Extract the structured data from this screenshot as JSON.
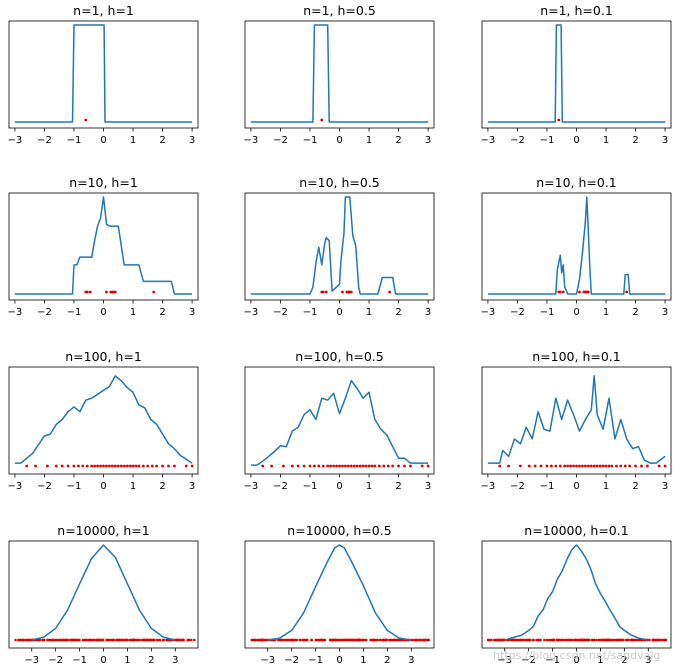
{
  "figure": {
    "watermark": "https://blog.csdn.net/sandvalg"
  },
  "chart_data": [
    {
      "type": "line",
      "title": "n=1, h=1",
      "n": 1,
      "h": 1,
      "xlim": [
        -3.2,
        3.2
      ],
      "xticks": [
        -3,
        -2,
        -1,
        0,
        1,
        2,
        3
      ],
      "yrange": [
        0,
        1
      ],
      "x": [
        -3,
        -1.05,
        -1,
        0,
        0.02,
        0.05,
        3
      ],
      "y": [
        0,
        0,
        1,
        1,
        1,
        0,
        0
      ],
      "samples": [
        -0.6
      ]
    },
    {
      "type": "line",
      "title": "n=1, h=0.5",
      "n": 1,
      "h": 0.5,
      "xlim": [
        -3.2,
        3.2
      ],
      "xticks": [
        -3,
        -2,
        -1,
        0,
        1,
        2,
        3
      ],
      "yrange": [
        0,
        1
      ],
      "x": [
        -3,
        -0.9,
        -0.85,
        -0.4,
        -0.35,
        3
      ],
      "y": [
        0,
        0,
        1,
        1,
        0,
        0
      ],
      "samples": [
        -0.6
      ]
    },
    {
      "type": "line",
      "title": "n=1, h=0.1",
      "n": 1,
      "h": 0.1,
      "xlim": [
        -3.2,
        3.2
      ],
      "xticks": [
        -3,
        -2,
        -1,
        0,
        1,
        2,
        3
      ],
      "yrange": [
        0,
        1
      ],
      "x": [
        -3,
        -0.72,
        -0.68,
        -0.52,
        -0.48,
        3
      ],
      "y": [
        0,
        0,
        1,
        1,
        0,
        0
      ],
      "samples": [
        -0.6
      ]
    },
    {
      "type": "line",
      "title": "n=10, h=1",
      "n": 10,
      "h": 1,
      "xlim": [
        -3.2,
        3.2
      ],
      "xticks": [
        -3,
        -2,
        -1,
        0,
        1,
        2,
        3
      ],
      "yrange": [
        0,
        1
      ],
      "x": [
        -3,
        -1.05,
        -1,
        -0.9,
        -0.8,
        -0.4,
        -0.3,
        -0.2,
        -0.1,
        0,
        0.1,
        0.2,
        0.5,
        0.7,
        1.2,
        1.35,
        2.3,
        2.4,
        3
      ],
      "y": [
        0,
        0,
        0.3,
        0.3,
        0.38,
        0.38,
        0.55,
        0.7,
        0.78,
        1,
        0.72,
        0.7,
        0.7,
        0.3,
        0.3,
        0.13,
        0.13,
        0,
        0
      ],
      "samples": [
        -0.6,
        -0.55,
        -0.45,
        0.1,
        0.25,
        0.3,
        0.35,
        0.4,
        1.7
      ]
    },
    {
      "type": "line",
      "title": "n=10, h=0.5",
      "n": 10,
      "h": 0.5,
      "xlim": [
        -3.2,
        3.2
      ],
      "xticks": [
        -3,
        -2,
        -1,
        0,
        1,
        2,
        3
      ],
      "yrange": [
        0,
        1
      ],
      "x": [
        -3,
        -1,
        -0.9,
        -0.8,
        -0.7,
        -0.6,
        -0.5,
        -0.45,
        -0.35,
        -0.25,
        0,
        0.05,
        0.15,
        0.2,
        0.35,
        0.45,
        0.55,
        0.65,
        0.7,
        1.3,
        1.45,
        1.55,
        1.8,
        1.9,
        3
      ],
      "y": [
        0,
        0,
        0.07,
        0.32,
        0.48,
        0.3,
        0.52,
        0.58,
        0.55,
        0.03,
        0.1,
        0.35,
        0.62,
        1,
        1,
        0.6,
        0.5,
        0.07,
        0,
        0,
        0.17,
        0.17,
        0.17,
        0,
        0
      ],
      "samples": [
        -0.6,
        -0.55,
        -0.45,
        0.1,
        0.25,
        0.3,
        0.35,
        0.4,
        1.7
      ]
    },
    {
      "type": "line",
      "title": "n=10, h=0.1",
      "n": 10,
      "h": 0.1,
      "xlim": [
        -3.2,
        3.2
      ],
      "xticks": [
        -3,
        -2,
        -1,
        0,
        1,
        2,
        3
      ],
      "yrange": [
        0,
        1
      ],
      "x": [
        -3,
        -0.7,
        -0.65,
        -0.55,
        -0.5,
        -0.45,
        -0.4,
        -0.35,
        -0.3,
        0,
        0.1,
        0.2,
        0.3,
        0.35,
        0.4,
        0.45,
        0.5,
        1.6,
        1.65,
        1.75,
        1.8,
        3
      ],
      "y": [
        0,
        0,
        0.25,
        0.4,
        0.22,
        0.3,
        0.07,
        0.04,
        0,
        0,
        0.15,
        0.42,
        0.75,
        1,
        0.65,
        0.28,
        0,
        0,
        0.2,
        0.2,
        0,
        0
      ],
      "samples": [
        -0.6,
        -0.55,
        -0.45,
        0.1,
        0.25,
        0.3,
        0.35,
        0.4,
        1.7
      ]
    },
    {
      "type": "line",
      "title": "n=100, h=1",
      "n": 100,
      "h": 1,
      "xlim": [
        -3.2,
        3.2
      ],
      "xticks": [
        -3,
        -2,
        -1,
        0,
        1,
        2,
        3
      ],
      "yrange": [
        0,
        1
      ],
      "x": [
        -3,
        -2.8,
        -2.6,
        -2.4,
        -2.2,
        -2.0,
        -1.8,
        -1.6,
        -1.4,
        -1.2,
        -1.0,
        -0.8,
        -0.6,
        -0.4,
        -0.2,
        0,
        0.2,
        0.4,
        0.6,
        0.8,
        1.0,
        1.2,
        1.4,
        1.6,
        1.8,
        2.0,
        2.2,
        2.4,
        2.6,
        2.8,
        3
      ],
      "y": [
        0.05,
        0.05,
        0.1,
        0.15,
        0.24,
        0.33,
        0.35,
        0.45,
        0.5,
        0.58,
        0.63,
        0.58,
        0.7,
        0.72,
        0.76,
        0.8,
        0.84,
        0.95,
        0.9,
        0.83,
        0.78,
        0.65,
        0.62,
        0.5,
        0.45,
        0.35,
        0.25,
        0.2,
        0.13,
        0.09,
        0.05
      ],
      "samples": [
        -2.6,
        -2.3,
        -1.9,
        -1.6,
        -1.4,
        -1.2,
        -1,
        -0.85,
        -0.7,
        -0.55,
        -0.4,
        -0.3,
        -0.2,
        -0.1,
        0,
        0.1,
        0.2,
        0.3,
        0.4,
        0.5,
        0.6,
        0.7,
        0.8,
        0.9,
        1.0,
        1.1,
        1.2,
        1.35,
        1.5,
        1.65,
        1.8,
        2.0,
        2.2,
        2.4,
        2.8,
        3.0
      ]
    },
    {
      "type": "line",
      "title": "n=100, h=0.5",
      "n": 100,
      "h": 0.5,
      "xlim": [
        -3.2,
        3.2
      ],
      "xticks": [
        -3,
        -2,
        -1,
        0,
        1,
        2,
        3
      ],
      "yrange": [
        0,
        1
      ],
      "x": [
        -3,
        -2.8,
        -2.6,
        -2.4,
        -2.2,
        -2.0,
        -1.8,
        -1.6,
        -1.4,
        -1.2,
        -1.0,
        -0.8,
        -0.6,
        -0.4,
        -0.2,
        0,
        0.2,
        0.4,
        0.6,
        0.8,
        1.0,
        1.2,
        1.4,
        1.6,
        1.8,
        2.0,
        2.2,
        2.4,
        2.6,
        2.8,
        3
      ],
      "y": [
        0.03,
        0.03,
        0.07,
        0.12,
        0.17,
        0.23,
        0.22,
        0.38,
        0.42,
        0.55,
        0.6,
        0.5,
        0.72,
        0.7,
        0.77,
        0.56,
        0.72,
        0.9,
        0.82,
        0.72,
        0.78,
        0.5,
        0.4,
        0.34,
        0.22,
        0.1,
        0.1,
        0.05,
        0.05,
        0.05,
        0.05
      ],
      "samples": [
        -2.6,
        -2.3,
        -1.9,
        -1.6,
        -1.4,
        -1.2,
        -1,
        -0.85,
        -0.7,
        -0.55,
        -0.4,
        -0.3,
        -0.2,
        -0.1,
        0,
        0.1,
        0.2,
        0.3,
        0.4,
        0.5,
        0.6,
        0.7,
        0.8,
        0.9,
        1.0,
        1.1,
        1.2,
        1.35,
        1.5,
        1.65,
        1.8,
        2.0,
        2.2,
        2.4,
        2.8,
        3.0
      ]
    },
    {
      "type": "line",
      "title": "n=100, h=0.1",
      "n": 100,
      "h": 0.1,
      "xlim": [
        -3.2,
        3.2
      ],
      "xticks": [
        -3,
        -2,
        -1,
        0,
        1,
        2,
        3
      ],
      "yrange": [
        0,
        1
      ],
      "x": [
        -3,
        -2.6,
        -2.5,
        -2.3,
        -2.1,
        -1.9,
        -1.7,
        -1.5,
        -1.3,
        -1.1,
        -0.9,
        -0.7,
        -0.5,
        -0.3,
        -0.1,
        0.1,
        0.3,
        0.5,
        0.6,
        0.7,
        0.9,
        1.1,
        1.3,
        1.5,
        1.7,
        1.9,
        2.1,
        2.3,
        2.5,
        2.7,
        3
      ],
      "y": [
        0.05,
        0.05,
        0.18,
        0.12,
        0.3,
        0.25,
        0.42,
        0.3,
        0.58,
        0.4,
        0.38,
        0.72,
        0.5,
        0.7,
        0.55,
        0.38,
        0.5,
        0.6,
        0.95,
        0.55,
        0.4,
        0.72,
        0.3,
        0.5,
        0.3,
        0.2,
        0.22,
        0.08,
        0.05,
        0.05,
        0.12
      ],
      "samples": [
        -2.6,
        -2.3,
        -1.9,
        -1.6,
        -1.4,
        -1.2,
        -1,
        -0.85,
        -0.7,
        -0.55,
        -0.4,
        -0.3,
        -0.2,
        -0.1,
        0,
        0.1,
        0.2,
        0.3,
        0.4,
        0.5,
        0.6,
        0.7,
        0.8,
        0.9,
        1.0,
        1.1,
        1.2,
        1.35,
        1.5,
        1.65,
        1.8,
        2.0,
        2.2,
        2.4,
        2.8,
        3.0
      ]
    },
    {
      "type": "line",
      "title": "n=10000, h=1",
      "n": 10000,
      "h": 1,
      "xlim": [
        -3.95,
        3.95
      ],
      "xticks": [
        -3,
        -2,
        -1,
        0,
        1,
        2,
        3
      ],
      "yrange": [
        0,
        1
      ],
      "x": [
        -3,
        -2.5,
        -2,
        -1.5,
        -1,
        -0.5,
        0,
        0.5,
        1,
        1.5,
        2,
        2.5,
        3
      ],
      "y": [
        0.02,
        0.05,
        0.14,
        0.33,
        0.6,
        0.86,
        1,
        0.87,
        0.6,
        0.33,
        0.14,
        0.05,
        0.02
      ],
      "sample_range": [
        -3.7,
        3.8
      ]
    },
    {
      "type": "line",
      "title": "n=10000, h=0.5",
      "n": 10000,
      "h": 0.5,
      "xlim": [
        -3.95,
        3.95
      ],
      "xticks": [
        -3,
        -2,
        -1,
        0,
        1,
        2,
        3
      ],
      "yrange": [
        0,
        1
      ],
      "x": [
        -3,
        -2.5,
        -2,
        -1.5,
        -1,
        -0.5,
        -0.2,
        0,
        0.2,
        0.5,
        1,
        1.5,
        2,
        2.5,
        3
      ],
      "y": [
        0.02,
        0.04,
        0.12,
        0.3,
        0.57,
        0.83,
        0.97,
        1,
        0.97,
        0.83,
        0.58,
        0.3,
        0.12,
        0.04,
        0.02
      ],
      "sample_range": [
        -3.7,
        3.8
      ]
    },
    {
      "type": "line",
      "title": "n=10000, h=0.1",
      "n": 10000,
      "h": 0.1,
      "xlim": [
        -3.95,
        3.95
      ],
      "xticks": [
        -3,
        -2,
        -1,
        0,
        1,
        2,
        3
      ],
      "yrange": [
        0,
        1
      ],
      "x": [
        -3,
        -2.6,
        -2.3,
        -2,
        -1.8,
        -1.6,
        -1.4,
        -1.2,
        -1,
        -0.8,
        -0.6,
        -0.4,
        -0.2,
        0,
        0.2,
        0.4,
        0.6,
        0.8,
        1,
        1.2,
        1.4,
        1.6,
        1.8,
        2,
        2.3,
        2.6,
        3
      ],
      "y": [
        0.02,
        0.05,
        0.07,
        0.12,
        0.16,
        0.27,
        0.33,
        0.45,
        0.52,
        0.65,
        0.73,
        0.85,
        0.95,
        1,
        0.94,
        0.86,
        0.75,
        0.6,
        0.5,
        0.42,
        0.33,
        0.25,
        0.16,
        0.12,
        0.07,
        0.04,
        0.02
      ],
      "sample_range": [
        -3.7,
        3.8
      ]
    }
  ]
}
